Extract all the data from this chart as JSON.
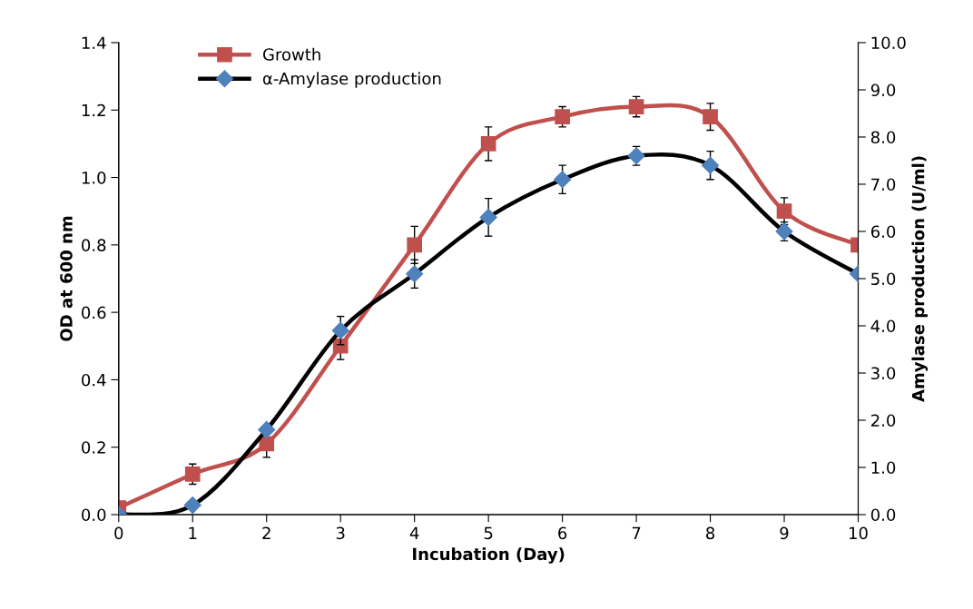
{
  "chart_data": {
    "type": "line",
    "xlabel": "Incubation (Day)",
    "ylabel": "OD at 600 nm",
    "y2label": "Amylase production (U/ml)",
    "x": [
      0,
      1,
      2,
      3,
      4,
      5,
      6,
      7,
      8,
      9,
      10
    ],
    "xlim": [
      0,
      10
    ],
    "xticks": [
      0,
      1,
      2,
      3,
      4,
      5,
      6,
      7,
      8,
      9,
      10
    ],
    "ylim": [
      0,
      1.4
    ],
    "yticks": [
      {
        "value": 0,
        "label": "0.0"
      },
      {
        "value": 0.2,
        "label": "0.2"
      },
      {
        "value": 0.4,
        "label": "0.4"
      },
      {
        "value": 0.6,
        "label": "0.6"
      },
      {
        "value": 0.8,
        "label": "0.8"
      },
      {
        "value": 1.0,
        "label": "1.0"
      },
      {
        "value": 1.2,
        "label": "1.2"
      },
      {
        "value": 1.4,
        "label": "1.4"
      }
    ],
    "y2lim": [
      0,
      10
    ],
    "y2ticks": [
      {
        "value": 0,
        "label": "0.0"
      },
      {
        "value": 1,
        "label": "1.0"
      },
      {
        "value": 2,
        "label": "2.0"
      },
      {
        "value": 3,
        "label": "3.0"
      },
      {
        "value": 4,
        "label": "4.0"
      },
      {
        "value": 5,
        "label": "5.0"
      },
      {
        "value": 6,
        "label": "6.0"
      },
      {
        "value": 7,
        "label": "7.0"
      },
      {
        "value": 8,
        "label": "8.0"
      },
      {
        "value": 9,
        "label": "9.0"
      },
      {
        "value": 10,
        "label": "10.0"
      }
    ],
    "series": [
      {
        "name": "Growth",
        "color": "#c0504d",
        "marker": "square",
        "values": [
          0.02,
          0.12,
          0.21,
          0.5,
          0.8,
          1.1,
          1.18,
          1.21,
          1.18,
          0.9,
          0.8
        ],
        "errors": [
          null,
          0.03,
          0.04,
          0.04,
          0.055,
          0.05,
          0.03,
          0.03,
          0.04,
          0.04,
          null
        ]
      },
      {
        "name": "α-Amylase production",
        "color": "#000000",
        "marker": "diamond",
        "axis": "y2",
        "values": [
          0.0,
          0.2,
          1.8,
          3.9,
          5.1,
          6.3,
          7.1,
          7.6,
          7.4,
          6.0,
          5.1
        ],
        "errors": [
          null,
          null,
          null,
          0.3,
          0.3,
          0.4,
          0.3,
          0.2,
          0.3,
          0.2,
          null
        ]
      }
    ],
    "legend": "top left",
    "grid": false,
    "line_style": "solid"
  }
}
